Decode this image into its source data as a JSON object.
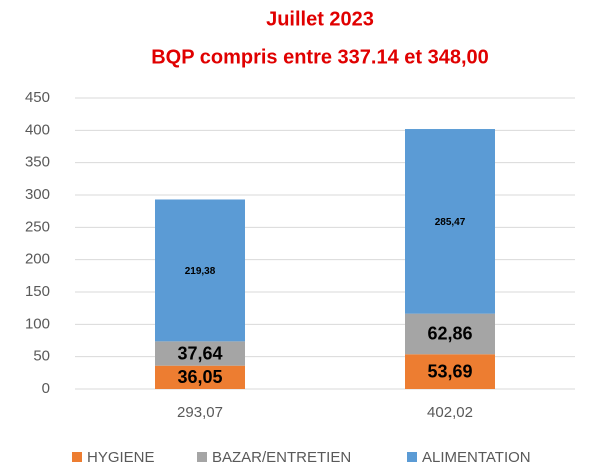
{
  "chart_data": {
    "type": "stacked_bar",
    "title": [
      "Juillet 2023",
      "BQP compris entre 337.14 et 348,00"
    ],
    "categories": [
      "293,07",
      "402,02"
    ],
    "series": [
      {
        "name": "HYGIENE",
        "color": "#ed7d31",
        "values": [
          36.05,
          53.69
        ],
        "value_labels": [
          "36,05",
          "53,69"
        ]
      },
      {
        "name": "BAZAR/ENTRETIEN",
        "color": "#a5a5a5",
        "values": [
          37.64,
          62.86
        ],
        "value_labels": [
          "37,64",
          "62,86"
        ]
      },
      {
        "name": "ALIMENTATION",
        "color": "#5b9bd5",
        "values": [
          219.38,
          285.47
        ],
        "value_labels": [
          "219,38",
          "285,47"
        ]
      }
    ],
    "ylim": [
      0,
      450
    ],
    "yticks": [
      0,
      50,
      100,
      150,
      200,
      250,
      300,
      350,
      400,
      450
    ],
    "grid": true,
    "legend": "bottom"
  }
}
